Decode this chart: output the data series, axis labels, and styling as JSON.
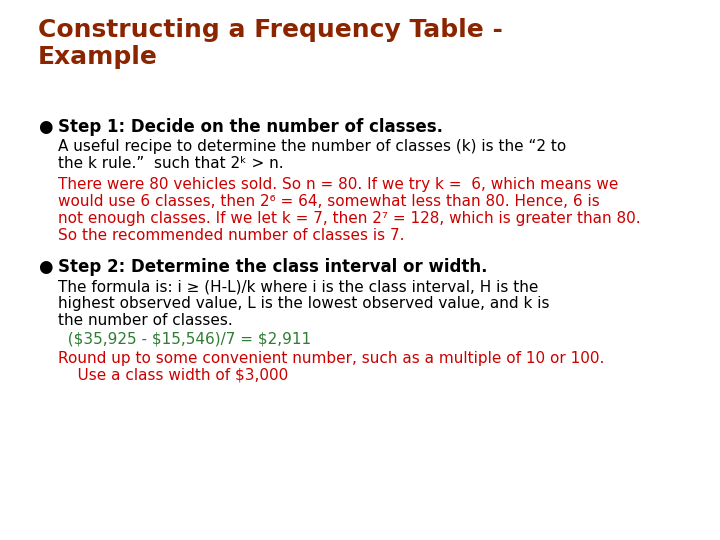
{
  "title_line1": "Constructing a Frequency Table -",
  "title_line2": "Example",
  "title_color": "#8B2500",
  "bg_color": "#FFFFFF",
  "bullet_color": "#000000",
  "black_color": "#000000",
  "red_color": "#CC0000",
  "green_color": "#2E7D32",
  "bullet1_bold": "Step 1: Decide on the number of classes.",
  "bullet1_normal_line1": "A useful recipe to determine the number of classes (k) is the “2 to",
  "bullet1_normal_line2": "the k rule.”  such that 2ᵏ > n.",
  "bullet1_red_line1": "There were 80 vehicles sold. So n = 80. If we try k =  6, which means we",
  "bullet1_red_line2": "would use 6 classes, then 2⁶ = 64, somewhat less than 80. Hence, 6 is",
  "bullet1_red_line3": "not enough classes. If we let k = 7, then 2⁷ = 128, which is greater than 80.",
  "bullet1_red_line4": "So the recommended number of classes is 7.",
  "bullet2_bold": "Step 2: Determine the class interval or width.",
  "bullet2_normal_line1": "The formula is: i ≥ (H-L)/k where i is the class interval, H is the",
  "bullet2_normal_line2": "highest observed value, L is the lowest observed value, and k is",
  "bullet2_normal_line3": "the number of classes.",
  "bullet2_green1": "  ($35,925 - $15,546)/7 = $2,911",
  "bullet2_red_line1": "Round up to some convenient number, such as a multiple of 10 or 100.",
  "bullet2_red_line2": "    Use a class width of $3,000",
  "title_fontsize": 18,
  "body_fontsize": 11,
  "bold_fontsize": 12
}
